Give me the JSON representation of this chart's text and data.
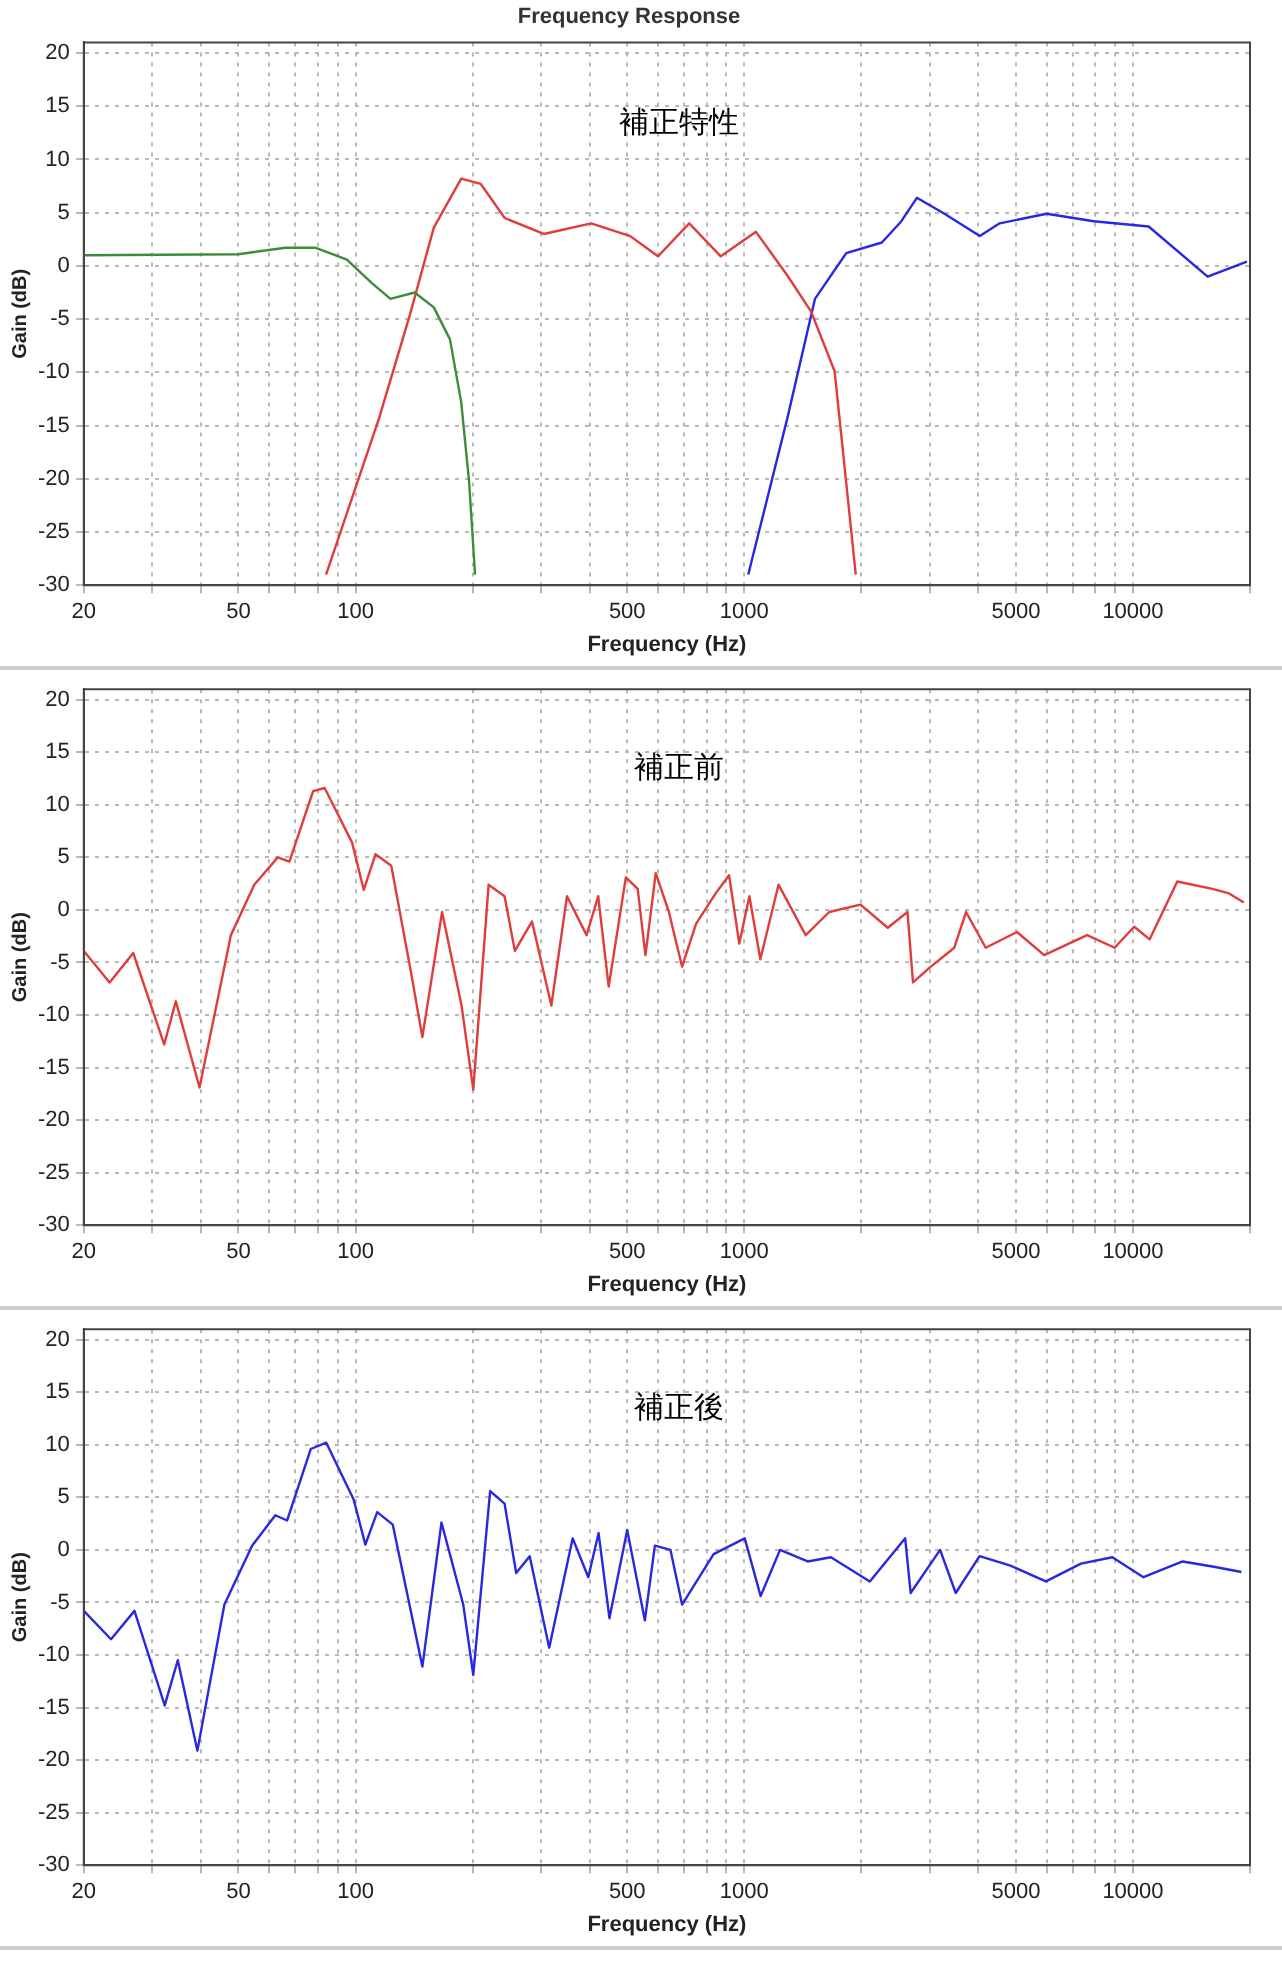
{
  "chart_data": [
    {
      "type": "line",
      "title": "Frequency Response",
      "xlabel": "Frequency (Hz)",
      "ylabel": "Gain (dB)",
      "annotations": [
        "補正特性"
      ],
      "log": "x",
      "grid": true,
      "marker": "none",
      "line_style": "solid",
      "xlim": [
        20,
        20000
      ],
      "ylim": [
        -30,
        21
      ],
      "xticks": [
        20,
        {
          "value": 30,
          "label": null
        },
        {
          "value": 40,
          "label": null
        },
        50,
        {
          "value": 60,
          "label": null
        },
        {
          "value": 70,
          "label": null
        },
        {
          "value": 80,
          "label": null
        },
        {
          "value": 90,
          "label": null
        },
        100,
        {
          "value": 200,
          "label": null
        },
        {
          "value": 300,
          "label": null
        },
        {
          "value": 400,
          "label": null
        },
        500,
        {
          "value": 600,
          "label": null
        },
        {
          "value": 700,
          "label": null
        },
        {
          "value": 800,
          "label": null
        },
        {
          "value": 900,
          "label": null
        },
        1000,
        {
          "value": 2000,
          "label": null
        },
        {
          "value": 3000,
          "label": null
        },
        {
          "value": 4000,
          "label": null
        },
        5000,
        {
          "value": 6000,
          "label": null
        },
        {
          "value": 7000,
          "label": null
        },
        {
          "value": 8000,
          "label": null
        },
        {
          "value": 9000,
          "label": null
        },
        10000,
        {
          "value": 20000,
          "label": null
        }
      ],
      "yticks": [
        20,
        15,
        10,
        5,
        0,
        -5,
        -10,
        -15,
        -20,
        -25,
        -30
      ],
      "series": [
        {
          "color": "#3c8c3c",
          "x": [
            20,
            50,
            66,
            79,
            95,
            110,
            123,
            142,
            159,
            175,
            187,
            196,
            203
          ],
          "values": [
            1.0,
            1.1,
            1.7,
            1.7,
            0.6,
            -1.6,
            -3.1,
            -2.5,
            -3.9,
            -6.9,
            -12.8,
            -20.3,
            -29
          ]
        },
        {
          "color": "#e03c3c",
          "x": [
            84,
            115,
            138,
            159,
            187,
            210,
            242,
            305,
            404,
            509,
            600,
            722,
            870,
            1072,
            1291,
            1486,
            1708,
            1936
          ],
          "values": [
            -29,
            -14.3,
            -4.6,
            3.6,
            8.2,
            7.7,
            4.5,
            3.0,
            4.0,
            2.8,
            0.9,
            4.0,
            0.9,
            3.2,
            -0.9,
            -4.3,
            -9.9,
            -29
          ]
        },
        {
          "color": "#2828e0",
          "x": [
            1024,
            1291,
            1520,
            1830,
            2260,
            2536,
            2780,
            3274,
            4036,
            4540,
            6000,
            7925,
            10970,
            15560,
            19640
          ],
          "values": [
            -29,
            -14.3,
            -3.1,
            1.2,
            2.2,
            4.2,
            6.4,
            4.9,
            2.8,
            4.0,
            4.9,
            4.2,
            3.7,
            -1.0,
            0.4
          ]
        }
      ]
    },
    {
      "type": "line",
      "xlabel": "Frequency (Hz)",
      "ylabel": "Gain (dB)",
      "annotations": [
        "補正前"
      ],
      "log": "x",
      "grid": true,
      "marker": "none",
      "line_style": "solid",
      "xlim": [
        20,
        20000
      ],
      "ylim": [
        -30,
        21
      ],
      "xticks": [
        20,
        {
          "value": 30,
          "label": null
        },
        {
          "value": 40,
          "label": null
        },
        50,
        {
          "value": 60,
          "label": null
        },
        {
          "value": 70,
          "label": null
        },
        {
          "value": 80,
          "label": null
        },
        {
          "value": 90,
          "label": null
        },
        100,
        {
          "value": 200,
          "label": null
        },
        {
          "value": 300,
          "label": null
        },
        {
          "value": 400,
          "label": null
        },
        500,
        {
          "value": 600,
          "label": null
        },
        {
          "value": 700,
          "label": null
        },
        {
          "value": 800,
          "label": null
        },
        {
          "value": 900,
          "label": null
        },
        1000,
        {
          "value": 2000,
          "label": null
        },
        {
          "value": 3000,
          "label": null
        },
        {
          "value": 4000,
          "label": null
        },
        5000,
        {
          "value": 6000,
          "label": null
        },
        {
          "value": 7000,
          "label": null
        },
        {
          "value": 8000,
          "label": null
        },
        {
          "value": 9000,
          "label": null
        },
        10000,
        {
          "value": 20000,
          "label": null
        }
      ],
      "yticks": [
        20,
        15,
        10,
        5,
        0,
        -5,
        -10,
        -15,
        -20,
        -25,
        -30
      ],
      "series": [
        {
          "color": "#e03c3c",
          "x": [
            20,
            23.3,
            26.8,
            32.2,
            34.5,
            39.7,
            47.8,
            54.9,
            63.1,
            67.6,
            77.8,
            83.3,
            98,
            105,
            112.6,
            123.6,
            138.7,
            148.6,
            167,
            187.4,
            200.9,
            220,
            241.8,
            257,
            284.5,
            319,
            350,
            393,
            421,
            448,
            496,
            532,
            557,
            592,
            640,
            692,
            752,
            845,
            914,
            971,
            1031,
            1100,
            1225,
            1439,
            1655,
            1990,
            2340,
            2630,
            2717,
            3020,
            3470,
            3720,
            4180,
            5030,
            5910,
            7620,
            8970,
            10070,
            11040,
            13000,
            16000,
            17580,
            19280
          ],
          "values": [
            -3.9,
            -6.9,
            -4.1,
            -12.8,
            -8.7,
            -16.9,
            -2.4,
            2.4,
            5.0,
            4.6,
            11.3,
            11.6,
            6.4,
            1.9,
            5.3,
            4.2,
            -5.8,
            -12.1,
            -0.2,
            -9.1,
            -17.1,
            2.4,
            1.3,
            -3.9,
            -1.1,
            -9.1,
            1.3,
            -2.4,
            1.3,
            -7.3,
            3.1,
            2.0,
            -4.3,
            3.5,
            -0.2,
            -5.4,
            -1.3,
            1.6,
            3.3,
            -3.2,
            1.3,
            -4.7,
            2.4,
            -2.4,
            -0.2,
            0.5,
            -1.7,
            -0.2,
            -6.9,
            -5.4,
            -3.6,
            -0.2,
            -3.6,
            -2.1,
            -4.3,
            -2.4,
            -3.6,
            -1.6,
            -2.8,
            2.7,
            2.0,
            1.6,
            0.7
          ]
        }
      ]
    },
    {
      "type": "line",
      "xlabel": "Frequency (Hz)",
      "ylabel": "Gain (dB)",
      "annotations": [
        "補正後"
      ],
      "log": "x",
      "grid": true,
      "marker": "none",
      "line_style": "solid",
      "xlim": [
        20,
        20000
      ],
      "ylim": [
        -30,
        21
      ],
      "xticks": [
        20,
        {
          "value": 30,
          "label": null
        },
        {
          "value": 40,
          "label": null
        },
        50,
        {
          "value": 60,
          "label": null
        },
        {
          "value": 70,
          "label": null
        },
        {
          "value": 80,
          "label": null
        },
        {
          "value": 90,
          "label": null
        },
        100,
        {
          "value": 200,
          "label": null
        },
        {
          "value": 300,
          "label": null
        },
        {
          "value": 400,
          "label": null
        },
        500,
        {
          "value": 600,
          "label": null
        },
        {
          "value": 700,
          "label": null
        },
        {
          "value": 800,
          "label": null
        },
        {
          "value": 900,
          "label": null
        },
        1000,
        {
          "value": 2000,
          "label": null
        },
        {
          "value": 3000,
          "label": null
        },
        {
          "value": 4000,
          "label": null
        },
        5000,
        {
          "value": 6000,
          "label": null
        },
        {
          "value": 7000,
          "label": null
        },
        {
          "value": 8000,
          "label": null
        },
        {
          "value": 9000,
          "label": null
        },
        10000,
        {
          "value": 20000,
          "label": null
        }
      ],
      "yticks": [
        20,
        15,
        10,
        5,
        0,
        -5,
        -10,
        -15,
        -20,
        -25,
        -30
      ],
      "series": [
        {
          "color": "#2828e0",
          "x": [
            20,
            23.5,
            27,
            32.3,
            34.9,
            39.2,
            46,
            54.2,
            62.2,
            66.7,
            76.7,
            84.1,
            98.9,
            106,
            113.7,
            124.7,
            148.6,
            166.4,
            189.3,
            200.9,
            222,
            241.8,
            259,
            280.6,
            315,
            362,
            397,
            422,
            450,
            500,
            555,
            589,
            646,
            692,
            834,
            1003,
            1102,
            1236,
            1456,
            1671,
            2104,
            2594,
            2680,
            3190,
            3500,
            4030,
            4840,
            5970,
            7350,
            8850,
            10640,
            13420,
            16140,
            19010
          ],
          "values": [
            -5.8,
            -8.5,
            -5.8,
            -14.8,
            -10.5,
            -19.1,
            -5.2,
            0.4,
            3.3,
            2.8,
            9.6,
            10.2,
            4.8,
            0.5,
            3.6,
            2.4,
            -11.1,
            2.6,
            -5.2,
            -11.9,
            5.6,
            4.4,
            -2.2,
            -0.6,
            -9.3,
            1.1,
            -2.6,
            1.6,
            -6.5,
            1.9,
            -6.7,
            0.4,
            0,
            -5.2,
            -0.4,
            1.1,
            -4.4,
            0,
            -1.1,
            -0.7,
            -3.0,
            1.1,
            -4.1,
            0,
            -4.1,
            -0.6,
            -1.5,
            -3.0,
            -1.3,
            -0.7,
            -2.6,
            -1.1,
            -1.6,
            -2.1
          ]
        }
      ]
    }
  ]
}
